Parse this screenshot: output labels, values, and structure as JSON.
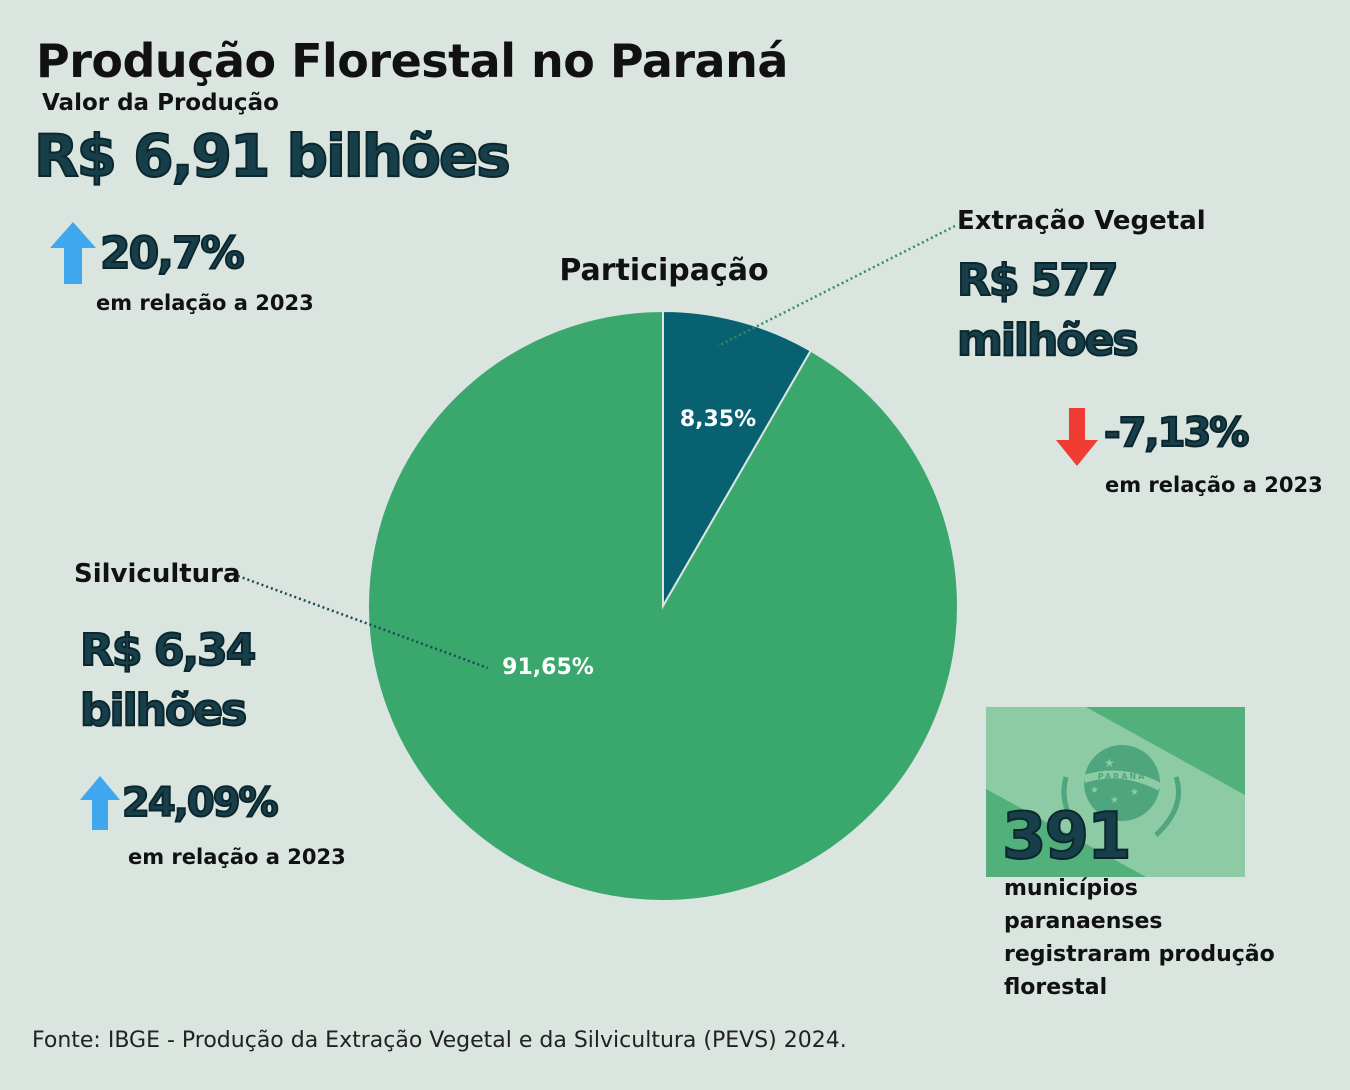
{
  "header": {
    "title": "Produção Florestal no Paraná",
    "subtitle": "Valor da Produção",
    "total_value": "R$ 6,91 bilhões",
    "total_change": "20,7%",
    "total_change_note": "em relação a 2023"
  },
  "extracao": {
    "label": "Extração Vegetal",
    "value_line1": "R$ 577",
    "value_line2": "milhões",
    "change": "-7,13%",
    "change_note": "em relação a 2023"
  },
  "silvicultura": {
    "label": "Silvicultura",
    "value_line1": "R$ 6,34",
    "value_line2": "bilhões",
    "change": "24,09%",
    "change_note": "em relação a 2023"
  },
  "municipios": {
    "count": "391",
    "text": "municípios paranaenses registraram produção florestal",
    "flag_text": "PARANÁ"
  },
  "source": "Fonte: IBGE - Produção da Extração Vegetal e da Silvicultura (PEVS) 2024.",
  "colors": {
    "background": "#dae5df",
    "silvicultura": "#3aa86d",
    "extracao": "#076170",
    "up_arrow": "#3fa7ee",
    "down_arrow": "#f03c33",
    "big_text": "#173f4a"
  },
  "chart_data": {
    "type": "pie",
    "title": "Participação",
    "slices": [
      {
        "name": "Extração Vegetal",
        "value": 8.35,
        "label": "8,35%"
      },
      {
        "name": "Silvicultura",
        "value": 91.65,
        "label": "91,65%"
      }
    ]
  }
}
